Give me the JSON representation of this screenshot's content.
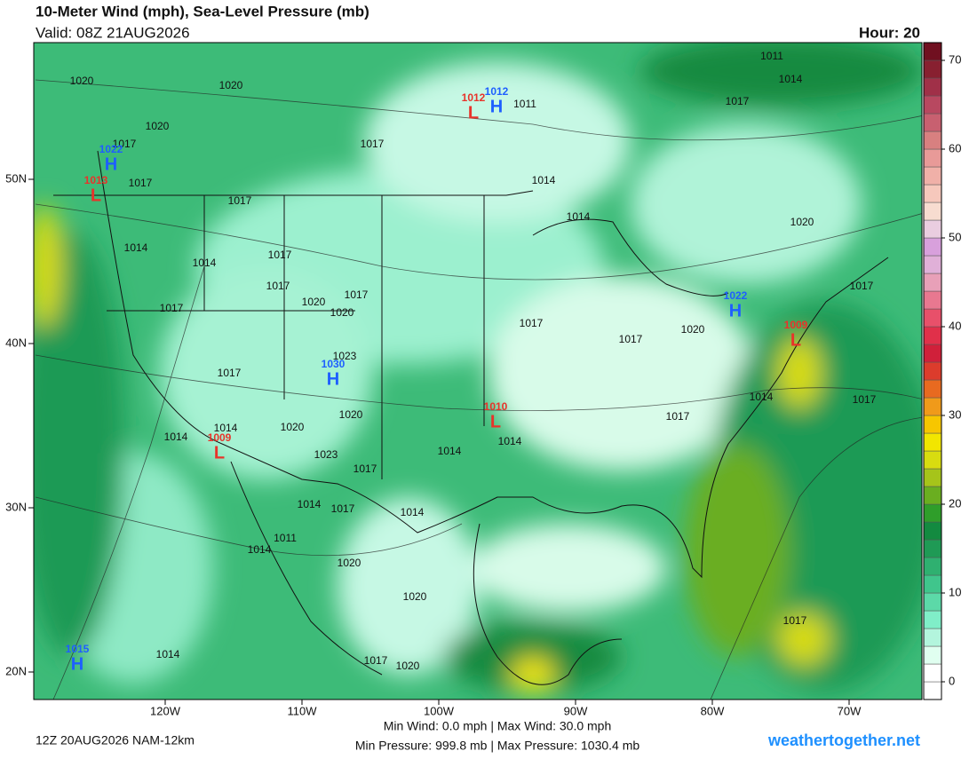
{
  "header": {
    "title": "10-Meter Wind (mph), Sea-Level Pressure (mb)",
    "valid": "Valid: 08Z 21AUG2026",
    "hour": "Hour: 20"
  },
  "footer": {
    "run": "12Z 20AUG2026 NAM-12km",
    "wind_stats": "Min Wind:   0.0 mph | Max Wind:  30.0 mph",
    "pressure_stats": "Min Pressure: 999.8 mb | Max Pressure: 1030.4 mb",
    "site": "weathertogether.net"
  },
  "longitude_labels": [
    "120W",
    "110W",
    "100W",
    "90W",
    "80W",
    "70W"
  ],
  "latitude_labels": [
    "50N",
    "40N",
    "30N",
    "20N"
  ],
  "colorbar": {
    "lim": [
      -2,
      72
    ],
    "ticks": [
      0,
      10,
      20,
      30,
      40,
      50,
      60,
      70
    ],
    "colors": [
      "#ffffff",
      "#ffffff",
      "#e0fff0",
      "#b3f5dd",
      "#80eec8",
      "#5cd9a8",
      "#40c58c",
      "#2fb070",
      "#1f9a55",
      "#138a40",
      "#2f9e2a",
      "#6aae20",
      "#a6c41a",
      "#d8dc10",
      "#f2e600",
      "#f7c600",
      "#f09a1a",
      "#e86a20",
      "#dc3c2c",
      "#d0203a",
      "#e0304a",
      "#e8506a",
      "#e87890",
      "#e8a0b8",
      "#e0b0d8",
      "#d8a0dc",
      "#eacde0",
      "#f7dcd0",
      "#f6c8bc",
      "#f0b0a8",
      "#e89a98",
      "#d88080",
      "#c86070",
      "#b84860",
      "#a03048",
      "#882030",
      "#701020"
    ]
  },
  "pressure_centers": [
    {
      "type": "H",
      "value": 1022
    },
    {
      "type": "L",
      "value": 1013
    },
    {
      "type": "L",
      "value": 1012
    },
    {
      "type": "H",
      "value": 1012
    },
    {
      "type": "H",
      "value": 1030
    },
    {
      "type": "L",
      "value": 1010
    },
    {
      "type": "L",
      "value": 1009
    },
    {
      "type": "H",
      "value": 1022
    },
    {
      "type": "L",
      "value": 1009
    },
    {
      "type": "H",
      "value": 1015
    }
  ],
  "isobar_labels": [
    1020,
    1020,
    1020,
    1017,
    1017,
    1017,
    1014,
    1014,
    1017,
    1017,
    1020,
    1017,
    1020,
    1017,
    1023,
    1017,
    1020,
    1020,
    1014,
    1014,
    1023,
    1017,
    1014,
    1014,
    1017,
    1017,
    1020,
    1017,
    1014,
    1017,
    1017,
    1020,
    1014,
    1014,
    1017,
    1011,
    1017,
    1011,
    1014,
    1014,
    1017,
    1014,
    1011,
    1014,
    1020,
    1020,
    1017,
    1020,
    1017,
    1014
  ]
}
